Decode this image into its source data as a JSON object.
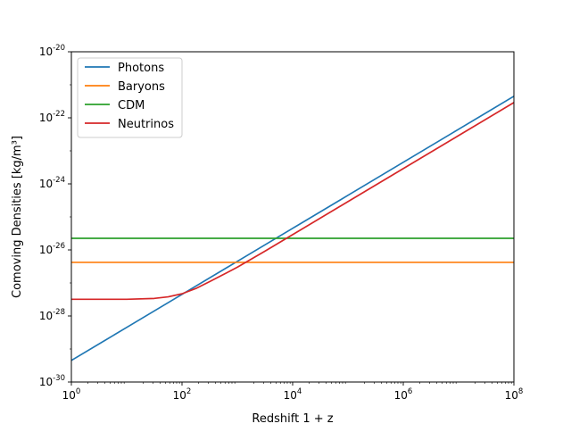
{
  "chart_data": {
    "type": "line",
    "title": "",
    "xlabel": "Redshift 1 + z",
    "ylabel": "Comoving Densities [kg/m³]",
    "x_scale": "log",
    "y_scale": "log",
    "xlim": [
      1,
      100000000
    ],
    "ylim": [
      1e-30,
      1e-20
    ],
    "x_ticks": [
      {
        "base": "10",
        "exp": "0",
        "value": 1
      },
      {
        "base": "10",
        "exp": "2",
        "value": 100
      },
      {
        "base": "10",
        "exp": "4",
        "value": 10000
      },
      {
        "base": "10",
        "exp": "6",
        "value": 1000000
      },
      {
        "base": "10",
        "exp": "8",
        "value": 100000000
      }
    ],
    "y_ticks": [
      {
        "base": "10",
        "exp": "-30",
        "value": 1e-30
      },
      {
        "base": "10",
        "exp": "-28",
        "value": 1e-28
      },
      {
        "base": "10",
        "exp": "-26",
        "value": 1e-26
      },
      {
        "base": "10",
        "exp": "-24",
        "value": 1e-24
      },
      {
        "base": "10",
        "exp": "-22",
        "value": 1e-22
      },
      {
        "base": "10",
        "exp": "-20",
        "value": 1e-20
      }
    ],
    "grid": false,
    "legend_position": "top-left",
    "series": [
      {
        "name": "Photons",
        "color": "#1f77b4",
        "x": [
          1,
          10,
          100,
          1000,
          10000,
          100000,
          1000000,
          10000000,
          100000000
        ],
        "y": [
          4.5e-30,
          4.5e-29,
          4.5e-28,
          4.5e-27,
          4.5e-26,
          4.5e-25,
          4.5e-24,
          4.5e-23,
          4.5e-22
        ]
      },
      {
        "name": "Baryons",
        "color": "#ff7f0e",
        "x": [
          1,
          100000000
        ],
        "y": [
          4.2e-27,
          4.2e-27
        ]
      },
      {
        "name": "CDM",
        "color": "#2ca02c",
        "x": [
          1,
          100000000
        ],
        "y": [
          2.25e-26,
          2.25e-26
        ]
      },
      {
        "name": "Neutrinos",
        "color": "#d62728",
        "x": [
          1,
          10,
          31.6,
          56.2,
          100,
          178,
          316,
          562,
          1000,
          3162,
          10000,
          100000,
          1000000,
          10000000,
          100000000
        ],
        "y": [
          3.2e-28,
          3.2e-28,
          3.4e-28,
          3.8e-28,
          4.7e-28,
          6.8e-28,
          1.1e-27,
          1.8e-27,
          3e-27,
          9.2e-27,
          2.9e-26,
          2.9e-25,
          2.9e-24,
          2.9e-23,
          2.9e-22
        ]
      }
    ]
  }
}
